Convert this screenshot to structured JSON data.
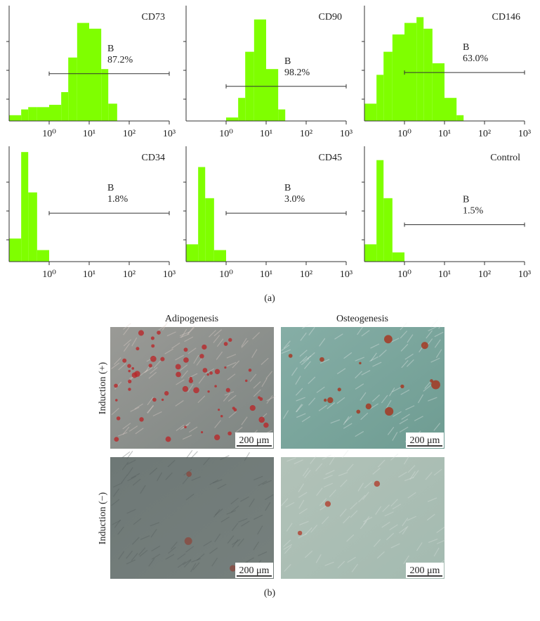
{
  "chart_data": [
    {
      "type": "histogram",
      "title": "CD73",
      "color": "#7fff00",
      "log_x": true,
      "xlim": [
        0.1,
        1000
      ],
      "ylim": [
        0,
        100
      ],
      "xticks": [
        {
          "value": 1,
          "label": "10⁰"
        },
        {
          "value": 10,
          "label": "10¹"
        },
        {
          "value": 100,
          "label": "10²"
        },
        {
          "value": 1000,
          "label": "10³"
        }
      ],
      "bins": [
        0.1,
        0.2,
        0.3,
        0.5,
        1,
        2,
        3,
        5,
        10,
        20,
        30,
        50,
        100,
        200,
        300,
        500,
        1000
      ],
      "values": [
        5,
        10,
        12,
        12,
        14,
        25,
        55,
        85,
        80,
        45,
        15,
        0,
        0,
        0,
        0,
        0
      ],
      "gate": {
        "name": "B",
        "value": 87.2,
        "value_label": "87.2%",
        "range": [
          1,
          1000
        ],
        "level": 41
      }
    },
    {
      "type": "histogram",
      "title": "CD90",
      "color": "#7fff00",
      "log_x": true,
      "xlim": [
        0.1,
        1000
      ],
      "ylim": [
        0,
        100
      ],
      "xticks": [
        {
          "value": 1,
          "label": "10⁰"
        },
        {
          "value": 10,
          "label": "10¹"
        },
        {
          "value": 100,
          "label": "10²"
        },
        {
          "value": 1000,
          "label": "10³"
        }
      ],
      "bins": [
        0.1,
        0.2,
        0.3,
        0.5,
        1,
        2,
        3,
        5,
        10,
        20,
        30,
        50,
        100,
        200,
        300,
        500,
        1000
      ],
      "values": [
        0,
        0,
        0,
        0,
        3,
        20,
        60,
        88,
        45,
        10,
        0,
        0,
        0,
        0,
        0,
        0
      ],
      "gate": {
        "name": "B",
        "value": 98.2,
        "value_label": "98.2%",
        "range": [
          1,
          1000
        ],
        "level": 30
      }
    },
    {
      "type": "histogram",
      "title": "CD146",
      "color": "#7fff00",
      "log_x": true,
      "xlim": [
        0.1,
        1000
      ],
      "ylim": [
        0,
        100
      ],
      "xticks": [
        {
          "value": 1,
          "label": "10⁰"
        },
        {
          "value": 10,
          "label": "10¹"
        },
        {
          "value": 100,
          "label": "10²"
        },
        {
          "value": 1000,
          "label": "10³"
        }
      ],
      "bins": [
        0.1,
        0.2,
        0.3,
        0.5,
        1,
        2,
        3,
        5,
        10,
        20,
        30,
        50,
        100,
        200,
        300,
        500,
        1000
      ],
      "values": [
        15,
        40,
        60,
        75,
        85,
        90,
        80,
        50,
        20,
        5,
        0,
        0,
        0,
        0,
        0,
        0
      ],
      "gate": {
        "name": "B",
        "value": 63.0,
        "value_label": "63.0%",
        "range": [
          1,
          1000
        ],
        "level": 42
      }
    },
    {
      "type": "histogram",
      "title": "CD34",
      "color": "#7fff00",
      "log_x": true,
      "xlim": [
        0.1,
        1000
      ],
      "ylim": [
        0,
        100
      ],
      "xticks": [
        {
          "value": 1,
          "label": "10⁰"
        },
        {
          "value": 10,
          "label": "10¹"
        },
        {
          "value": 100,
          "label": "10²"
        },
        {
          "value": 1000,
          "label": "10³"
        }
      ],
      "bins": [
        0.1,
        0.2,
        0.3,
        0.5,
        1,
        2,
        3,
        5,
        10,
        20,
        30,
        50,
        100,
        200,
        300,
        500,
        1000
      ],
      "values": [
        20,
        95,
        60,
        10,
        0,
        0,
        0,
        0,
        0,
        0,
        0,
        0,
        0,
        0,
        0,
        0
      ],
      "gate": {
        "name": "B",
        "value": 1.8,
        "value_label": "1.8%",
        "range": [
          1,
          1000
        ],
        "level": 42
      }
    },
    {
      "type": "histogram",
      "title": "CD45",
      "color": "#7fff00",
      "log_x": true,
      "xlim": [
        0.1,
        1000
      ],
      "ylim": [
        0,
        100
      ],
      "xticks": [
        {
          "value": 1,
          "label": "10⁰"
        },
        {
          "value": 10,
          "label": "10¹"
        },
        {
          "value": 100,
          "label": "10²"
        },
        {
          "value": 1000,
          "label": "10³"
        }
      ],
      "bins": [
        0.1,
        0.2,
        0.3,
        0.5,
        1,
        2,
        3,
        5,
        10,
        20,
        30,
        50,
        100,
        200,
        300,
        500,
        1000
      ],
      "values": [
        15,
        82,
        55,
        10,
        0,
        0,
        0,
        0,
        0,
        0,
        0,
        0,
        0,
        0,
        0,
        0
      ],
      "gate": {
        "name": "B",
        "value": 3.0,
        "value_label": "3.0%",
        "range": [
          1,
          1000
        ],
        "level": 42
      }
    },
    {
      "type": "histogram",
      "title": "Control",
      "color": "#7fff00",
      "log_x": true,
      "xlim": [
        0.1,
        1000
      ],
      "ylim": [
        0,
        100
      ],
      "xticks": [
        {
          "value": 1,
          "label": "10⁰"
        },
        {
          "value": 10,
          "label": "10¹"
        },
        {
          "value": 100,
          "label": "10²"
        },
        {
          "value": 1000,
          "label": "10³"
        }
      ],
      "bins": [
        0.1,
        0.2,
        0.3,
        0.5,
        1,
        2,
        3,
        5,
        10,
        20,
        30,
        50,
        100,
        200,
        300,
        500,
        1000
      ],
      "values": [
        15,
        88,
        55,
        8,
        0,
        0,
        0,
        0,
        0,
        0,
        0,
        0,
        0,
        0,
        0,
        0
      ],
      "gate": {
        "name": "B",
        "value": 1.5,
        "value_label": "1.5%",
        "range": [
          1,
          1000
        ],
        "level": 32
      }
    }
  ],
  "panel_a_label": "(a)",
  "panel_b": {
    "columns": [
      "Adipogenesis",
      "Osteogenesis"
    ],
    "rows": [
      "Induction (+)",
      "Induction (−)"
    ],
    "scale_bar": "200 μm",
    "label": "(b)"
  }
}
